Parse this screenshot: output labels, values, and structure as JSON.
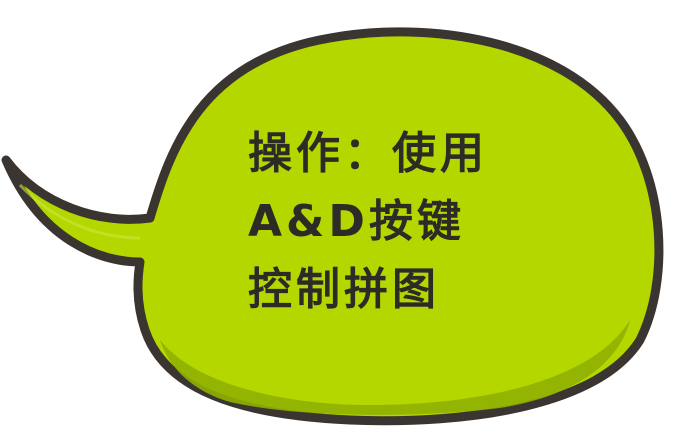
{
  "bubble": {
    "fill": "#b5d700",
    "shadow": "#8fb000",
    "outline": "#3a3530"
  },
  "message": {
    "line1": "操作：使用",
    "line2": "A&D按键",
    "line3": "控制拼图"
  }
}
